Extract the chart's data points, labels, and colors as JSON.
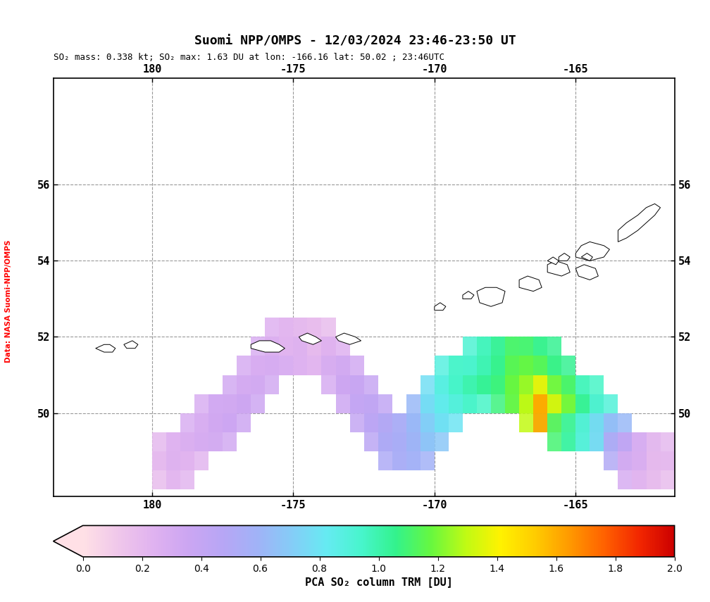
{
  "title": "Suomi NPP/OMPS - 12/03/2024 23:46-23:50 UT",
  "subtitle": "SO₂ mass: 0.338 kt; SO₂ max: 1.63 DU at lon: -166.16 lat: 50.02 ; 23:46UTC",
  "xlabel": "PCA SO₂ column TRM [DU]",
  "ylabel_side": "Data: NASA Suomi-NPP/OMPS",
  "lon_min": 176.5,
  "lon_max": -161.5,
  "lat_min": 47.8,
  "lat_max": 58.8,
  "xticks": [
    180,
    -175,
    -170,
    -165
  ],
  "yticks": [
    50,
    52,
    54,
    56
  ],
  "colorbar_vmin": 0.0,
  "colorbar_vmax": 2.0,
  "colorbar_ticks": [
    0.0,
    0.2,
    0.4,
    0.6,
    0.8,
    1.0,
    1.2,
    1.4,
    1.6,
    1.8,
    2.0
  ],
  "bg_color": "#ffffff",
  "map_bg": "#ffffff",
  "coastline_color": "#000000",
  "grid_color": "#aaaaaa",
  "border_color": "#000000",
  "so2_pixels": [
    {
      "lon": -179.5,
      "lat": 48.5,
      "val": 0.18
    },
    {
      "lon": -179.0,
      "lat": 48.5,
      "val": 0.22
    },
    {
      "lon": -179.5,
      "lat": 49.0,
      "val": 0.2
    },
    {
      "lon": -179.0,
      "lat": 49.0,
      "val": 0.25
    },
    {
      "lon": -178.5,
      "lat": 49.0,
      "val": 0.22
    },
    {
      "lon": -178.5,
      "lat": 49.5,
      "val": 0.28
    },
    {
      "lon": -178.0,
      "lat": 49.5,
      "val": 0.3
    },
    {
      "lon": -177.5,
      "lat": 49.5,
      "val": 0.32
    },
    {
      "lon": -178.0,
      "lat": 50.0,
      "val": 0.28
    },
    {
      "lon": -177.5,
      "lat": 50.0,
      "val": 0.33
    },
    {
      "lon": -177.0,
      "lat": 50.0,
      "val": 0.35
    },
    {
      "lon": -177.0,
      "lat": 50.5,
      "val": 0.32
    },
    {
      "lon": -176.5,
      "lat": 50.5,
      "val": 0.35
    },
    {
      "lon": -176.5,
      "lat": 51.0,
      "val": 0.3
    },
    {
      "lon": -176.0,
      "lat": 51.0,
      "val": 0.32
    },
    {
      "lon": -176.0,
      "lat": 51.5,
      "val": 0.28
    },
    {
      "lon": -175.5,
      "lat": 51.5,
      "val": 0.3
    },
    {
      "lon": -175.0,
      "lat": 51.5,
      "val": 0.28
    },
    {
      "lon": -175.5,
      "lat": 52.0,
      "val": 0.25
    },
    {
      "lon": -175.0,
      "lat": 52.0,
      "val": 0.22
    },
    {
      "lon": -174.5,
      "lat": 52.0,
      "val": 0.2
    },
    {
      "lon": -174.5,
      "lat": 51.5,
      "val": 0.25
    },
    {
      "lon": -174.0,
      "lat": 51.5,
      "val": 0.22
    },
    {
      "lon": -174.0,
      "lat": 52.0,
      "val": 0.18
    },
    {
      "lon": -173.5,
      "lat": 51.5,
      "val": 0.25
    },
    {
      "lon": -173.5,
      "lat": 51.0,
      "val": 0.3
    },
    {
      "lon": -173.0,
      "lat": 51.0,
      "val": 0.32
    },
    {
      "lon": -173.0,
      "lat": 50.5,
      "val": 0.35
    },
    {
      "lon": -172.5,
      "lat": 50.5,
      "val": 0.38
    },
    {
      "lon": -172.5,
      "lat": 50.0,
      "val": 0.4
    },
    {
      "lon": -172.0,
      "lat": 50.0,
      "val": 0.42
    },
    {
      "lon": -172.0,
      "lat": 49.5,
      "val": 0.45
    },
    {
      "lon": -171.5,
      "lat": 49.5,
      "val": 0.5
    },
    {
      "lon": -171.5,
      "lat": 49.0,
      "val": 0.52
    },
    {
      "lon": -171.0,
      "lat": 49.0,
      "val": 0.55
    },
    {
      "lon": -171.0,
      "lat": 49.5,
      "val": 0.55
    },
    {
      "lon": -170.5,
      "lat": 49.0,
      "val": 0.58
    },
    {
      "lon": -170.5,
      "lat": 49.5,
      "val": 0.6
    },
    {
      "lon": -170.5,
      "lat": 50.0,
      "val": 0.62
    },
    {
      "lon": -170.0,
      "lat": 49.5,
      "val": 0.68
    },
    {
      "lon": -170.0,
      "lat": 50.0,
      "val": 0.72
    },
    {
      "lon": -170.0,
      "lat": 50.5,
      "val": 0.78
    },
    {
      "lon": -169.5,
      "lat": 50.0,
      "val": 0.8
    },
    {
      "lon": -169.5,
      "lat": 50.5,
      "val": 0.85
    },
    {
      "lon": -169.5,
      "lat": 51.0,
      "val": 0.88
    },
    {
      "lon": -169.0,
      "lat": 50.5,
      "val": 0.9
    },
    {
      "lon": -169.0,
      "lat": 51.0,
      "val": 0.95
    },
    {
      "lon": -168.5,
      "lat": 50.5,
      "val": 0.95
    },
    {
      "lon": -168.5,
      "lat": 51.0,
      "val": 1.0
    },
    {
      "lon": -168.5,
      "lat": 51.5,
      "val": 0.92
    },
    {
      "lon": -168.0,
      "lat": 51.0,
      "val": 1.05
    },
    {
      "lon": -168.0,
      "lat": 51.5,
      "val": 0.98
    },
    {
      "lon": -167.5,
      "lat": 51.0,
      "val": 1.1
    },
    {
      "lon": -167.5,
      "lat": 51.5,
      "val": 1.05
    },
    {
      "lon": -167.5,
      "lat": 50.5,
      "val": 1.08
    },
    {
      "lon": -167.0,
      "lat": 51.5,
      "val": 1.12
    },
    {
      "lon": -167.0,
      "lat": 51.0,
      "val": 1.15
    },
    {
      "lon": -167.0,
      "lat": 50.5,
      "val": 1.18
    },
    {
      "lon": -166.5,
      "lat": 51.5,
      "val": 1.1
    },
    {
      "lon": -166.5,
      "lat": 51.0,
      "val": 1.18
    },
    {
      "lon": -166.5,
      "lat": 50.5,
      "val": 1.25
    },
    {
      "lon": -166.5,
      "lat": 50.0,
      "val": 1.3
    },
    {
      "lon": -166.0,
      "lat": 51.5,
      "val": 1.05
    },
    {
      "lon": -166.0,
      "lat": 51.0,
      "val": 1.15
    },
    {
      "lon": -166.0,
      "lat": 50.5,
      "val": 1.4
    },
    {
      "lon": -166.0,
      "lat": 50.0,
      "val": 1.63
    },
    {
      "lon": -165.5,
      "lat": 51.0,
      "val": 1.05
    },
    {
      "lon": -165.5,
      "lat": 50.5,
      "val": 1.2
    },
    {
      "lon": -165.5,
      "lat": 50.0,
      "val": 1.35
    },
    {
      "lon": -165.5,
      "lat": 49.5,
      "val": 1.1
    },
    {
      "lon": -165.0,
      "lat": 50.5,
      "val": 1.1
    },
    {
      "lon": -165.0,
      "lat": 50.0,
      "val": 1.2
    },
    {
      "lon": -165.0,
      "lat": 49.5,
      "val": 1.0
    },
    {
      "lon": -164.5,
      "lat": 50.5,
      "val": 0.95
    },
    {
      "lon": -164.5,
      "lat": 50.0,
      "val": 1.05
    },
    {
      "lon": -164.5,
      "lat": 49.5,
      "val": 0.88
    },
    {
      "lon": -164.0,
      "lat": 50.0,
      "val": 0.9
    },
    {
      "lon": -164.0,
      "lat": 49.5,
      "val": 0.75
    },
    {
      "lon": -163.5,
      "lat": 49.5,
      "val": 0.62
    },
    {
      "lon": -163.5,
      "lat": 49.0,
      "val": 0.5
    },
    {
      "lon": -163.0,
      "lat": 49.0,
      "val": 0.4
    },
    {
      "lon": -163.0,
      "lat": 48.5,
      "val": 0.3
    },
    {
      "lon": -162.5,
      "lat": 48.5,
      "val": 0.22
    },
    {
      "lon": -162.5,
      "lat": 49.0,
      "val": 0.28
    },
    {
      "lon": -162.0,
      "lat": 48.5,
      "val": 0.18
    },
    {
      "lon": -162.0,
      "lat": 49.0,
      "val": 0.2
    }
  ]
}
